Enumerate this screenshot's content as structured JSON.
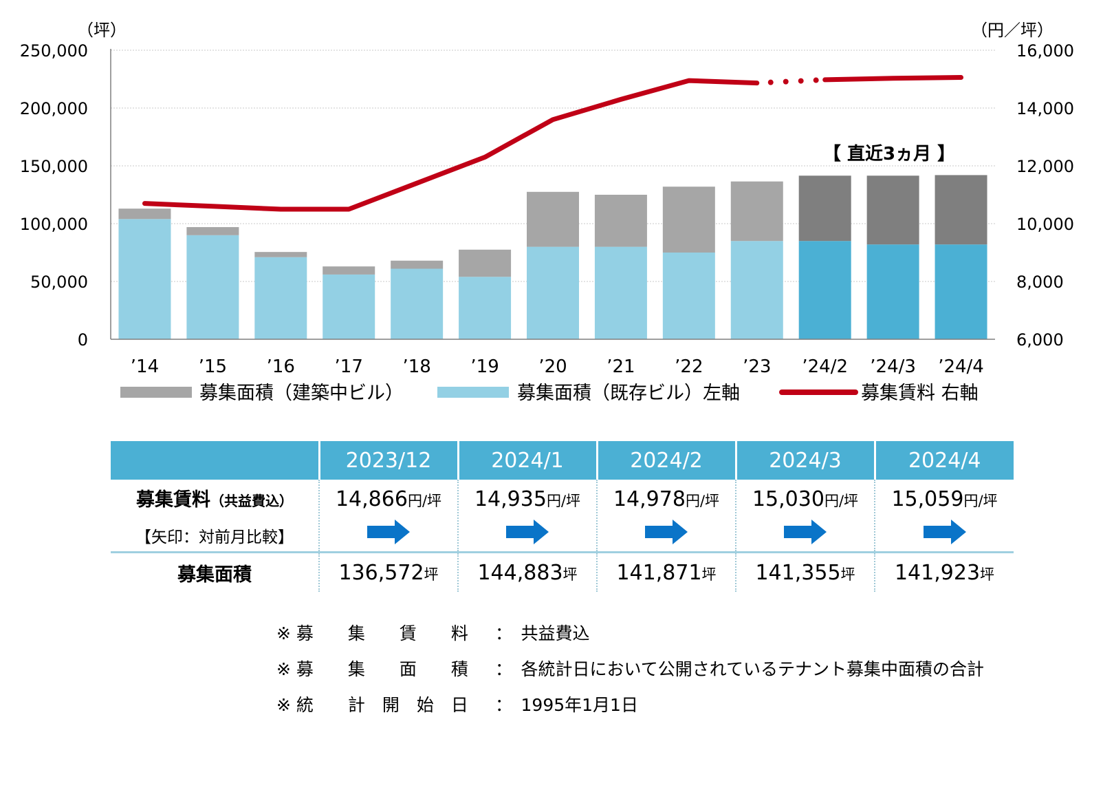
{
  "chart_data": {
    "type": "bar+line",
    "categories": [
      "’14",
      "’15",
      "’16",
      "’17",
      "’18",
      "’19",
      "’20",
      "’21",
      "’22",
      "’23",
      "’24/2",
      "’24/3",
      "’24/4"
    ],
    "series": [
      {
        "name": "募集面積（既存ビル）左軸",
        "type": "bar",
        "axis": "left",
        "values": [
          104000,
          90000,
          71000,
          56000,
          61000,
          54000,
          80000,
          80000,
          75000,
          85000,
          85000,
          82000,
          82000
        ]
      },
      {
        "name": "募集面積（建築中ビル）",
        "type": "bar",
        "axis": "left",
        "values": [
          9000,
          7000,
          4500,
          7000,
          7000,
          23500,
          47500,
          45000,
          57000,
          51500,
          56500,
          59500,
          60000
        ]
      },
      {
        "name": "募集賃料 右軸",
        "type": "line",
        "axis": "right",
        "values": [
          10700,
          10600,
          10500,
          10500,
          11400,
          12300,
          13600,
          14300,
          14950,
          14866,
          14978,
          15030,
          15059
        ]
      }
    ],
    "left_axis": {
      "unit": "（坪）",
      "range": [
        0,
        250000
      ],
      "ticks": [
        "0",
        "50,000",
        "100,000",
        "150,000",
        "200,000",
        "250,000"
      ]
    },
    "right_axis": {
      "unit": "（円／坪）",
      "range": [
        6000,
        16000
      ],
      "ticks": [
        "6,000",
        "8,000",
        "10,000",
        "12,000",
        "14,000",
        "16,000"
      ]
    },
    "annotation": "【 直近3ヵ月 】",
    "legend_position": "bottom",
    "grid": true,
    "colors": {
      "existing": "#93d0e4",
      "under_construction": "#a6a6a6",
      "existing_recent": "#4bb0d4",
      "under_construction_recent": "#7f7f7f",
      "rent": "#c00016"
    }
  },
  "legend": {
    "under_construction": "募集面積（建築中ビル）",
    "existing": "募集面積（既存ビル）左軸",
    "rent": "募集賃料 右軸"
  },
  "table": {
    "headers": [
      "2023/12",
      "2024/1",
      "2024/2",
      "2024/3",
      "2024/4"
    ],
    "rent_label": "募集賃料",
    "rent_label_sub": "（共益費込）",
    "rent_note": "【矢印：対前月比較】",
    "rent_values": [
      "14,866",
      "14,935",
      "14,978",
      "15,030",
      "15,059"
    ],
    "rent_unit": "円/坪",
    "arrow_direction": [
      "up",
      "up",
      "up",
      "up",
      "up"
    ],
    "area_label": "募集面積",
    "area_values": [
      "136,572",
      "144,883",
      "141,871",
      "141,355",
      "141,923"
    ],
    "area_unit": "坪"
  },
  "notes": [
    {
      "label": "※ 募　　集　　賃　　料",
      "sep": "：",
      "text": "共益費込"
    },
    {
      "label": "※ 募　　集　　面　　積",
      "sep": "：",
      "text": "各統計日において公開されているテナント募集中面積の合計"
    },
    {
      "label": "※ 統　　計　開　始　日",
      "sep": "：",
      "text": "1995年1月1日"
    }
  ]
}
